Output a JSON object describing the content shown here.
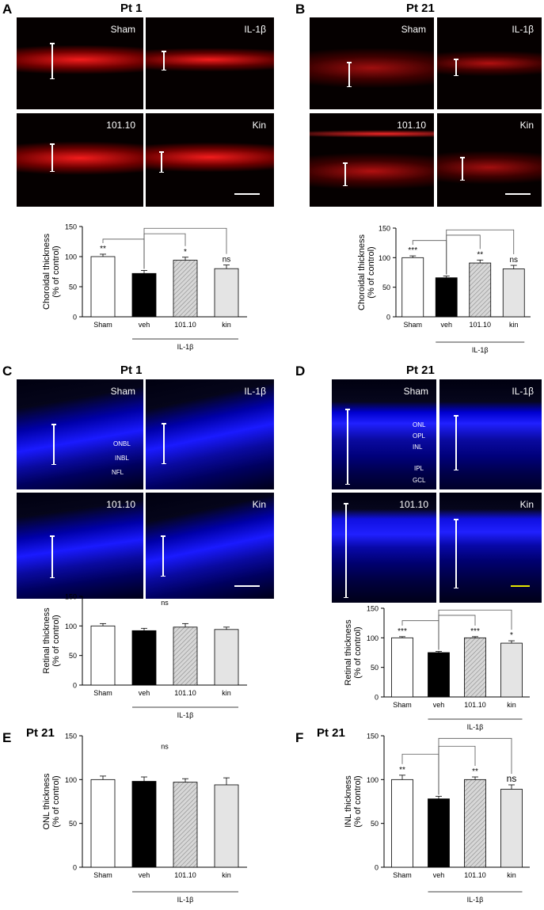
{
  "panels": {
    "A": {
      "letter": "A",
      "title": "Pt 1"
    },
    "B": {
      "letter": "B",
      "title": "Pt 21"
    },
    "C": {
      "letter": "C",
      "title": "Pt 1"
    },
    "D": {
      "letter": "D",
      "title": "Pt 21"
    },
    "E": {
      "letter": "E",
      "title": "Pt 21"
    },
    "F": {
      "letter": "F",
      "title": "Pt 21"
    }
  },
  "micrographs": {
    "labels": [
      "Sham",
      "IL-1β",
      "101.10",
      "Kin"
    ],
    "stain_colors": {
      "choroid": "#ff1a1a",
      "retina": "#1a1aff"
    },
    "retina_layers_C": [
      "ONBL",
      "INBL",
      "NFL"
    ],
    "retina_layers_D": [
      "ONL",
      "OPL",
      "INL",
      "IPL",
      "GCL"
    ]
  },
  "colors": {
    "sham": "#ffffff",
    "veh": "#000000",
    "compound": "#d7d7d7",
    "kin": "#e4e4e4",
    "scalebar_default": "#ffffff",
    "scalebar_D": "#e6e600"
  },
  "chart_data": [
    {
      "panel": "A",
      "type": "bar",
      "ylabel": [
        "Choroidal thickness",
        "(% of control)"
      ],
      "categories": [
        "Sham",
        "veh",
        "101.10",
        "kin"
      ],
      "values": [
        100,
        72,
        94,
        80
      ],
      "errors": [
        4,
        5,
        5,
        6
      ],
      "ylim": [
        0,
        150
      ],
      "yticks": [
        0,
        50,
        100,
        150
      ],
      "significance": [
        "**",
        "",
        "*",
        "ns"
      ],
      "group_label": "IL-1β",
      "brackets": [
        [
          1,
          0
        ],
        [
          1,
          2
        ],
        [
          1,
          3
        ]
      ]
    },
    {
      "panel": "B",
      "type": "bar",
      "ylabel": [
        "Choroidal thickness",
        "(% of control)"
      ],
      "categories": [
        "Sham",
        "veh",
        "101.10",
        "kin"
      ],
      "values": [
        100,
        66,
        91,
        81
      ],
      "errors": [
        3,
        3,
        5,
        6
      ],
      "ylim": [
        0,
        150
      ],
      "yticks": [
        0,
        50,
        100,
        150
      ],
      "significance": [
        "***",
        "",
        "**",
        "ns"
      ],
      "group_label": "IL-1β",
      "brackets": [
        [
          1,
          0
        ],
        [
          1,
          2
        ],
        [
          1,
          3
        ]
      ]
    },
    {
      "panel": "C",
      "type": "bar",
      "ylabel": [
        "Retinal thickness",
        "(% of control)"
      ],
      "categories": [
        "Sham",
        "veh",
        "101.10",
        "kin"
      ],
      "values": [
        100,
        92,
        98,
        94
      ],
      "errors": [
        4,
        4,
        6,
        4
      ],
      "ylim": [
        0,
        150
      ],
      "yticks": [
        0,
        50,
        100,
        150
      ],
      "significance": [
        "",
        "",
        "",
        ""
      ],
      "overall_note": "ns",
      "group_label": "IL-1β",
      "brackets": []
    },
    {
      "panel": "D",
      "type": "bar",
      "ylabel": [
        "Retinal thickness",
        "(% of control)"
      ],
      "categories": [
        "Sham",
        "veh",
        "101.10",
        "kin"
      ],
      "values": [
        100,
        75,
        100,
        91
      ],
      "errors": [
        2,
        2,
        2,
        4
      ],
      "ylim": [
        0,
        150
      ],
      "yticks": [
        0,
        50,
        100,
        150
      ],
      "significance": [
        "***",
        "",
        "***",
        "*"
      ],
      "group_label": "IL-1β",
      "brackets": [
        [
          1,
          0
        ],
        [
          1,
          2
        ],
        [
          1,
          3
        ]
      ]
    },
    {
      "panel": "E",
      "type": "bar",
      "ylabel": [
        "ONL thickness",
        "(% of control)"
      ],
      "categories": [
        "Sham",
        "veh",
        "101.10",
        "kin"
      ],
      "values": [
        100,
        98,
        97,
        94
      ],
      "errors": [
        4,
        5,
        4,
        8
      ],
      "ylim": [
        0,
        150
      ],
      "yticks": [
        0,
        50,
        100,
        150
      ],
      "significance": [
        "",
        "",
        "",
        ""
      ],
      "overall_note": "ns",
      "group_label": "IL-1β",
      "brackets": []
    },
    {
      "panel": "F",
      "type": "bar",
      "ylabel": [
        "INL thickness",
        "(% of control)"
      ],
      "categories": [
        "Sham",
        "veh",
        "101.10",
        "kin"
      ],
      "values": [
        100,
        78,
        100,
        89
      ],
      "errors": [
        5,
        3,
        3,
        5
      ],
      "ylim": [
        0,
        150
      ],
      "yticks": [
        0,
        50,
        100,
        150
      ],
      "significance": [
        "**",
        "",
        "**",
        "ns"
      ],
      "group_label": "IL-1β",
      "brackets": [
        [
          1,
          0
        ],
        [
          1,
          2
        ],
        [
          1,
          3
        ]
      ]
    }
  ]
}
